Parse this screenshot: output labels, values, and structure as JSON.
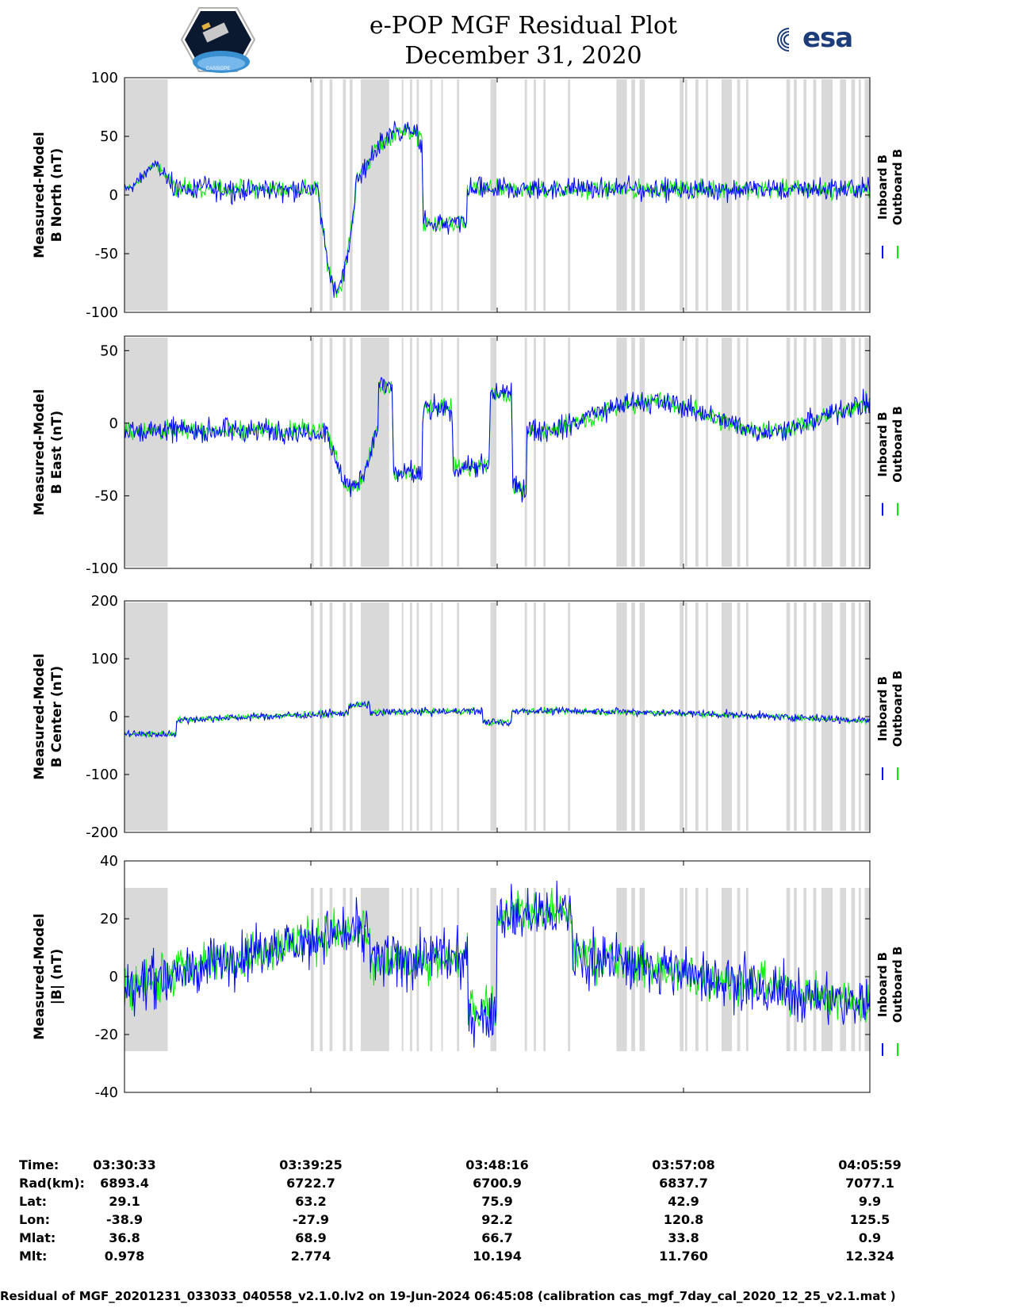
{
  "title_line1": "e-POP MGF Residual Plot",
  "title_line2": "December 31, 2020",
  "logo_left": "CASSIOPE",
  "logo_right": "esa",
  "colors": {
    "inboard": "#0000ff",
    "outboard": "#00ee00",
    "gap": "#d9d9d9"
  },
  "chart_data": [
    {
      "type": "line",
      "ylabel_line1": "Measured-Model",
      "ylabel_line2": "B North (nT)",
      "ylim": [
        -100,
        100
      ],
      "yticks": [
        "100",
        "50",
        "0",
        "-50",
        "-100"
      ],
      "legend": [
        "Inboard B",
        "Outboard B"
      ]
    },
    {
      "type": "line",
      "ylabel_line1": "Measured-Model",
      "ylabel_line2": "B East (nT)",
      "ylim": [
        -100,
        60
      ],
      "yticks": [
        "50",
        "0",
        "-50",
        "-100"
      ],
      "legend": [
        "Inboard B",
        "Outboard B"
      ]
    },
    {
      "type": "line",
      "ylabel_line1": "Measured-Model",
      "ylabel_line2": "B Center (nT)",
      "ylim": [
        -200,
        200
      ],
      "yticks": [
        "200",
        "100",
        "0",
        "-100",
        "-200"
      ],
      "legend": [
        "Inboard B",
        "Outboard B"
      ]
    },
    {
      "type": "line",
      "ylabel_line1": "Measured-Model",
      "ylabel_line2": "|B| (nT)",
      "ylim": [
        -40,
        40
      ],
      "yticks": [
        "40",
        "20",
        "0",
        "-20",
        "-40"
      ],
      "legend": [
        "Inboard B",
        "Outboard B"
      ]
    }
  ],
  "info_table": {
    "labels": [
      "Time:",
      "Rad(km):",
      "Lat:",
      "Lon:",
      "Mlat:",
      "Mlt:"
    ],
    "columns": [
      [
        "03:30:33",
        "6893.4",
        "29.1",
        "-38.9",
        "36.8",
        "0.978"
      ],
      [
        "03:39:25",
        "6722.7",
        "63.2",
        "-27.9",
        "68.9",
        "2.774"
      ],
      [
        "03:48:16",
        "6700.9",
        "75.9",
        "92.2",
        "66.7",
        "10.194"
      ],
      [
        "03:57:08",
        "6837.7",
        "42.9",
        "120.8",
        "33.8",
        "11.760"
      ],
      [
        "04:05:59",
        "7077.1",
        "9.9",
        "125.5",
        "0.9",
        "12.324"
      ]
    ]
  },
  "footer": "Residual of MGF_20201231_033033_040558_v2.1.0.lv2 on 19-Jun-2024 06:45:08 (calibration cas_mgf_7day_cal_2020_12_25_v2.1.mat )"
}
